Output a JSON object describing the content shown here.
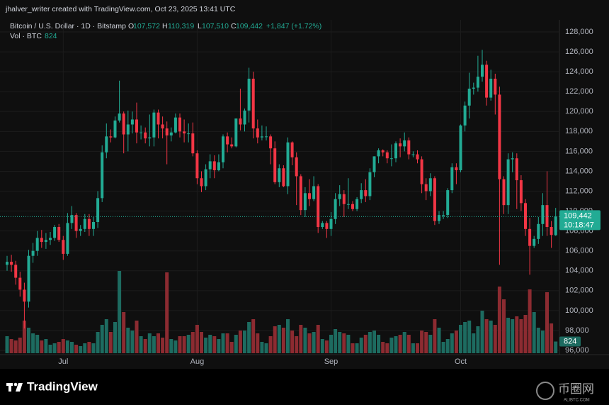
{
  "header": {
    "author_line": "jhalver_writer created with TradingView.com, Oct 23, 2025 13:41 UTC",
    "symbol": "Bitcoin / U.S. Dollar · 1D · Bitstamp",
    "ohlc": [
      {
        "key": "O",
        "value": "107,572"
      },
      {
        "key": "H",
        "value": "110,319"
      },
      {
        "key": "L",
        "value": "107,510"
      },
      {
        "key": "C",
        "value": "109,442"
      }
    ],
    "change": "+1,847 (+1.72%)",
    "volume_title": "Vol · BTC",
    "volume_value": "824"
  },
  "footer": {
    "brand": "TradingView",
    "watermark": "币圈网",
    "watermark_url": "ALIBTC.COM"
  },
  "chart_data": {
    "type": "candlestick",
    "categories": [
      null,
      null,
      null,
      null,
      null,
      null,
      null,
      null,
      null,
      null,
      null,
      null,
      null,
      "Jul",
      null,
      null,
      null,
      null,
      null,
      null,
      null,
      null,
      null,
      null,
      null,
      null,
      null,
      null,
      null,
      null,
      null,
      null,
      null,
      null,
      null,
      null,
      null,
      null,
      null,
      null,
      null,
      null,
      null,
      null,
      "Aug",
      null,
      null,
      null,
      null,
      null,
      null,
      null,
      null,
      null,
      null,
      null,
      null,
      null,
      null,
      null,
      null,
      null,
      null,
      null,
      null,
      null,
      null,
      null,
      null,
      null,
      null,
      null,
      null,
      null,
      null,
      "Sep",
      null,
      null,
      null,
      null,
      null,
      null,
      null,
      null,
      null,
      null,
      null,
      null,
      null,
      null,
      null,
      null,
      null,
      null,
      null,
      null,
      null,
      null,
      null,
      null,
      null,
      null,
      null,
      null,
      null,
      "Oct",
      null,
      null,
      null,
      null,
      null,
      null,
      null,
      null,
      null,
      null,
      null,
      null,
      null,
      null,
      null,
      null,
      null,
      null,
      null,
      null,
      null,
      null
    ],
    "open": [
      104600,
      104900,
      104600,
      103300,
      102100,
      100900,
      105500,
      106000,
      107300,
      106900,
      107100,
      107300,
      108400,
      107100,
      105700,
      108800,
      109600,
      108000,
      108200,
      109200,
      108200,
      108900,
      111300,
      115900,
      117500,
      117400,
      119100,
      119800,
      117700,
      118700,
      119200,
      117900,
      117900,
      117300,
      117400,
      119900,
      118700,
      118300,
      117600,
      117900,
      119400,
      118000,
      117800,
      117800,
      115800,
      113300,
      112500,
      114200,
      115000,
      114100,
      114900,
      117500,
      116700,
      116500,
      119300,
      118700,
      120100,
      123300,
      118300,
      117400,
      117500,
      117500,
      116300,
      112900,
      114300,
      112500,
      116900,
      115400,
      113500,
      110100,
      111800,
      111200,
      112500,
      108400,
      108800,
      108200,
      109200,
      111200,
      111700,
      110700,
      110700,
      110200,
      111200,
      112100,
      111500,
      113900,
      115500,
      116100,
      115900,
      115300,
      115300,
      116800,
      116500,
      117100,
      115700,
      115700,
      115200,
      112700,
      112000,
      113300,
      109000,
      109600,
      109600,
      112100,
      114400,
      114100,
      118600,
      120600,
      122300,
      122400,
      123500,
      124700,
      121400,
      123300,
      121700,
      113200,
      110600,
      115200,
      115300,
      113100,
      110800,
      108200,
      106500,
      107200,
      108700,
      110600,
      108400,
      107572
    ],
    "high": [
      105500,
      105600,
      105000,
      103900,
      102800,
      106100,
      106800,
      108000,
      108100,
      107800,
      107900,
      108600,
      108700,
      107500,
      109800,
      110500,
      109800,
      108600,
      109700,
      109700,
      109400,
      112000,
      116600,
      118800,
      118200,
      119500,
      123100,
      120000,
      120100,
      120000,
      120900,
      118600,
      118400,
      119700,
      120200,
      120200,
      119500,
      119000,
      118400,
      119800,
      119800,
      119200,
      118800,
      118900,
      116100,
      114000,
      114700,
      115700,
      115600,
      115700,
      117700,
      117900,
      117400,
      119300,
      122300,
      120300,
      124400,
      124000,
      119200,
      118600,
      118500,
      117700,
      117000,
      114700,
      114600,
      117400,
      117000,
      115900,
      113700,
      112400,
      113200,
      113500,
      112700,
      109000,
      109000,
      109900,
      111800,
      112600,
      112100,
      113300,
      111000,
      111400,
      112800,
      113200,
      114300,
      115500,
      116300,
      116200,
      116100,
      116700,
      117000,
      117300,
      117900,
      117400,
      116000,
      116100,
      115500,
      113300,
      113800,
      113500,
      110000,
      110000,
      112300,
      114800,
      114800,
      118700,
      121000,
      123900,
      122900,
      125600,
      126200,
      125100,
      124200,
      123800,
      122500,
      113500,
      115800,
      115900,
      115800,
      113600,
      111200,
      109300,
      107500,
      109400,
      111800,
      114000,
      109000,
      110319
    ],
    "low": [
      104000,
      103900,
      102600,
      101400,
      98200,
      100300,
      104800,
      105500,
      106300,
      106200,
      106600,
      107000,
      106900,
      105100,
      105500,
      108200,
      107300,
      107500,
      107900,
      107500,
      107500,
      108300,
      110900,
      115300,
      116900,
      117300,
      118900,
      115800,
      116000,
      117800,
      116800,
      117200,
      116800,
      116500,
      116500,
      117300,
      117300,
      114700,
      117000,
      117800,
      117400,
      116900,
      116900,
      115500,
      112700,
      111900,
      112100,
      113300,
      113300,
      114000,
      114300,
      115900,
      116300,
      116400,
      118100,
      118000,
      118900,
      117300,
      116800,
      117100,
      117100,
      114700,
      112700,
      112400,
      112400,
      111700,
      114600,
      110600,
      109600,
      109400,
      110500,
      111000,
      107800,
      108200,
      107300,
      107500,
      108700,
      110500,
      109400,
      110200,
      110000,
      110000,
      110800,
      110900,
      111100,
      113400,
      114800,
      115500,
      114800,
      114500,
      114900,
      115400,
      116000,
      115200,
      115400,
      114800,
      111800,
      111100,
      111500,
      108600,
      108700,
      109200,
      109300,
      111800,
      112700,
      113900,
      118000,
      119300,
      121700,
      122000,
      123000,
      120600,
      121100,
      119700,
      104600,
      109700,
      109700,
      113900,
      110200,
      110000,
      107500,
      103600,
      106300,
      106700,
      107500,
      107500,
      106300,
      107510
    ],
    "close": [
      104900,
      104600,
      103300,
      102100,
      100900,
      105500,
      106000,
      107300,
      106900,
      107100,
      107300,
      108400,
      107100,
      105700,
      108800,
      109600,
      108000,
      108200,
      109200,
      108200,
      108900,
      111300,
      115900,
      117500,
      117400,
      119100,
      119800,
      117700,
      118700,
      119200,
      117900,
      117900,
      117300,
      117400,
      119900,
      118700,
      118300,
      117600,
      117900,
      119400,
      118000,
      117800,
      117800,
      115800,
      113300,
      112500,
      114200,
      115000,
      114100,
      114900,
      117500,
      116700,
      116500,
      119300,
      118700,
      120100,
      123300,
      118300,
      117400,
      117500,
      117500,
      116300,
      112900,
      114300,
      112500,
      116900,
      115400,
      113500,
      110100,
      111800,
      111200,
      112500,
      108400,
      108800,
      108200,
      109200,
      111200,
      111700,
      110700,
      110700,
      110200,
      111200,
      112100,
      111500,
      113900,
      115500,
      116100,
      115900,
      115300,
      115300,
      116800,
      116500,
      117100,
      115700,
      115700,
      115200,
      112700,
      112000,
      113300,
      109000,
      109600,
      109600,
      112100,
      114400,
      114100,
      118600,
      120600,
      122300,
      122400,
      123500,
      124700,
      121400,
      123300,
      121700,
      113200,
      110600,
      115200,
      115300,
      113100,
      110800,
      108200,
      106500,
      107200,
      108700,
      110600,
      108400,
      107600,
      109442
    ],
    "volume": [
      1200,
      1000,
      900,
      1100,
      2300,
      1800,
      1400,
      1300,
      900,
      1000,
      600,
      700,
      800,
      1000,
      900,
      800,
      600,
      500,
      700,
      800,
      700,
      1500,
      2000,
      2400,
      1500,
      2200,
      5800,
      2900,
      1800,
      1600,
      2300,
      1200,
      1000,
      1400,
      1200,
      1400,
      1100,
      5700,
      1000,
      900,
      1200,
      1200,
      1300,
      1500,
      2000,
      1500,
      1100,
      1300,
      1200,
      1000,
      1400,
      1400,
      800,
      1300,
      1600,
      1600,
      2200,
      2400,
      1400,
      800,
      700,
      1200,
      1900,
      2000,
      1800,
      2400,
      1600,
      1200,
      2000,
      1800,
      1400,
      1500,
      2000,
      1000,
      900,
      1300,
      1700,
      1500,
      1400,
      1300,
      700,
      700,
      1100,
      1300,
      1500,
      1600,
      1300,
      800,
      700,
      1100,
      1200,
      1300,
      1500,
      1300,
      700,
      700,
      1600,
      1500,
      1300,
      2400,
      1800,
      800,
      1000,
      1400,
      1600,
      2000,
      2200,
      2300,
      1400,
      1900,
      3000,
      2400,
      2300,
      2000,
      4700,
      3800,
      2500,
      2400,
      2600,
      2400,
      2700,
      4500,
      2900,
      1800,
      1600,
      4300,
      2100,
      824
    ],
    "up_color": "#22ab94",
    "down_color": "#f23645",
    "volume_up_color": "#1d6b60",
    "volume_down_color": "#8c2b31",
    "ylim": [
      96000,
      128000
    ],
    "yticks": [
      {
        "value": 96000,
        "label": "96,000"
      },
      {
        "value": 98000,
        "label": "98,000"
      },
      {
        "value": 100000,
        "label": "100,000"
      },
      {
        "value": 102000,
        "label": "102,000"
      },
      {
        "value": 104000,
        "label": "104,000"
      },
      {
        "value": 106000,
        "label": "106,000"
      },
      {
        "value": 108000,
        "label": "108,000"
      },
      {
        "value": 110000,
        "label": "110,000"
      },
      {
        "value": 112000,
        "label": "112,000"
      },
      {
        "value": 114000,
        "label": "114,000"
      },
      {
        "value": 116000,
        "label": "116,000"
      },
      {
        "value": 118000,
        "label": "118,000"
      },
      {
        "value": 120000,
        "label": "120,000"
      },
      {
        "value": 122000,
        "label": "122,000"
      },
      {
        "value": 124000,
        "label": "124,000"
      },
      {
        "value": 126000,
        "label": "126,000"
      },
      {
        "value": 128000,
        "label": "128,000"
      }
    ],
    "volume_ylim": [
      0,
      6000
    ],
    "grid": true,
    "last_price_label": "109,442",
    "countdown_label": "10:18:47",
    "last_volume_label": "824"
  }
}
